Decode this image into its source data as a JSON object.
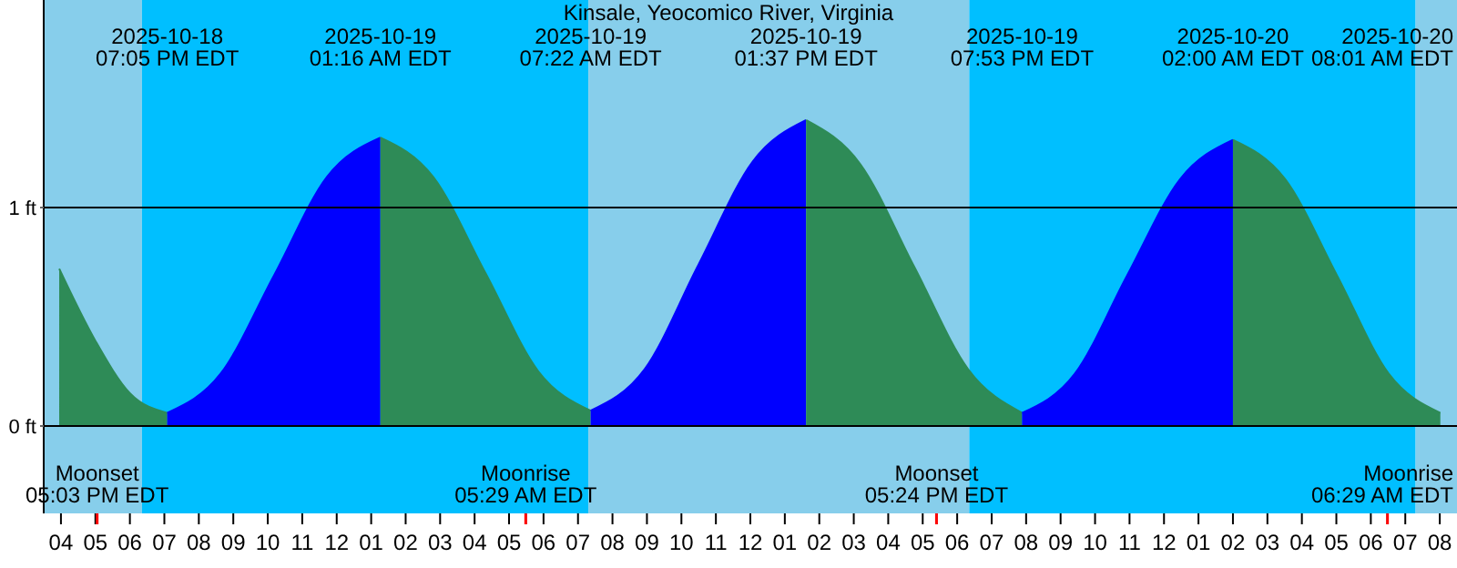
{
  "chart_data": {
    "type": "area",
    "title": "Kinsale, Yeocomico River, Virginia",
    "series": [
      {
        "color": "#2e8b57",
        "x": [
          "2025-10-18T15:57",
          "2025-10-18T17:00",
          "2025-10-18T18:00",
          "2025-10-18T19:05"
        ],
        "values": [
          0.72,
          0.39,
          0.15,
          0.06
        ]
      },
      {
        "color": "#0000ff",
        "x": [
          "2025-10-18T19:05",
          "2025-10-18T20:38",
          "2025-10-18T22:11",
          "2025-10-18T23:43",
          "2025-10-19T01:16"
        ],
        "values": [
          0.06,
          0.24,
          0.69,
          1.14,
          1.32
        ]
      },
      {
        "color": "#2e8b57",
        "x": [
          "2025-10-19T01:16",
          "2025-10-19T02:48",
          "2025-10-19T04:19",
          "2025-10-19T05:51",
          "2025-10-19T07:22"
        ],
        "values": [
          1.32,
          1.14,
          0.7,
          0.25,
          0.07
        ]
      },
      {
        "color": "#0000ff",
        "x": [
          "2025-10-19T07:22",
          "2025-10-19T08:56",
          "2025-10-19T10:30",
          "2025-10-19T12:04",
          "2025-10-19T13:37"
        ],
        "values": [
          0.07,
          0.26,
          0.74,
          1.21,
          1.4
        ]
      },
      {
        "color": "#2e8b57",
        "x": [
          "2025-10-19T13:37",
          "2025-10-19T15:11",
          "2025-10-19T16:45",
          "2025-10-19T18:19",
          "2025-10-19T19:53"
        ],
        "values": [
          1.4,
          1.2,
          0.73,
          0.26,
          0.06
        ]
      },
      {
        "color": "#0000ff",
        "x": [
          "2025-10-19T19:53",
          "2025-10-19T21:25",
          "2025-10-19T22:56",
          "2025-10-20T00:28",
          "2025-10-20T02:00"
        ],
        "values": [
          0.06,
          0.24,
          0.69,
          1.13,
          1.31
        ]
      },
      {
        "color": "#2e8b57",
        "x": [
          "2025-10-20T02:00",
          "2025-10-20T03:31",
          "2025-10-20T05:01",
          "2025-10-20T06:31",
          "2025-10-20T08:01"
        ],
        "values": [
          1.31,
          1.13,
          0.69,
          0.24,
          0.06
        ]
      }
    ],
    "xlim": [
      "2025-10-18T15:30",
      "2025-10-20T08:30"
    ],
    "xticks": [
      {
        "value": "2025-10-18T16:00",
        "label": "04"
      },
      {
        "value": "2025-10-18T17:00",
        "label": "05"
      },
      {
        "value": "2025-10-18T17:03",
        "label": null
      },
      {
        "value": "2025-10-18T18:00",
        "label": "06"
      },
      {
        "value": "2025-10-18T19:00",
        "label": "07"
      },
      {
        "value": "2025-10-18T20:00",
        "label": "08"
      },
      {
        "value": "2025-10-18T21:00",
        "label": "09"
      },
      {
        "value": "2025-10-18T22:00",
        "label": "10"
      },
      {
        "value": "2025-10-18T23:00",
        "label": "11"
      },
      {
        "value": "2025-10-19T00:00",
        "label": "12"
      },
      {
        "value": "2025-10-19T01:00",
        "label": "01"
      },
      {
        "value": "2025-10-19T02:00",
        "label": "02"
      },
      {
        "value": "2025-10-19T03:00",
        "label": "03"
      },
      {
        "value": "2025-10-19T04:00",
        "label": "04"
      },
      {
        "value": "2025-10-19T05:00",
        "label": "05"
      },
      {
        "value": "2025-10-19T05:29",
        "label": null
      },
      {
        "value": "2025-10-19T06:00",
        "label": "06"
      },
      {
        "value": "2025-10-19T07:00",
        "label": "07"
      },
      {
        "value": "2025-10-19T08:00",
        "label": "08"
      },
      {
        "value": "2025-10-19T09:00",
        "label": "09"
      },
      {
        "value": "2025-10-19T10:00",
        "label": "10"
      },
      {
        "value": "2025-10-19T11:00",
        "label": "11"
      },
      {
        "value": "2025-10-19T12:00",
        "label": "12"
      },
      {
        "value": "2025-10-19T13:00",
        "label": "01"
      },
      {
        "value": "2025-10-19T14:00",
        "label": "02"
      },
      {
        "value": "2025-10-19T15:00",
        "label": "03"
      },
      {
        "value": "2025-10-19T16:00",
        "label": "04"
      },
      {
        "value": "2025-10-19T17:00",
        "label": "05"
      },
      {
        "value": "2025-10-19T17:24",
        "label": null
      },
      {
        "value": "2025-10-19T18:00",
        "label": "06"
      },
      {
        "value": "2025-10-19T19:00",
        "label": "07"
      },
      {
        "value": "2025-10-19T20:00",
        "label": "08"
      },
      {
        "value": "2025-10-19T21:00",
        "label": "09"
      },
      {
        "value": "2025-10-19T22:00",
        "label": "10"
      },
      {
        "value": "2025-10-19T23:00",
        "label": "11"
      },
      {
        "value": "2025-10-20T00:00",
        "label": "12"
      },
      {
        "value": "2025-10-20T01:00",
        "label": "01"
      },
      {
        "value": "2025-10-20T02:00",
        "label": "02"
      },
      {
        "value": "2025-10-20T03:00",
        "label": "03"
      },
      {
        "value": "2025-10-20T04:00",
        "label": "04"
      },
      {
        "value": "2025-10-20T05:00",
        "label": "05"
      },
      {
        "value": "2025-10-20T06:00",
        "label": "06"
      },
      {
        "value": "2025-10-20T06:29",
        "label": null
      },
      {
        "value": "2025-10-20T07:00",
        "label": "07"
      },
      {
        "value": "2025-10-20T08:00",
        "label": "08"
      }
    ],
    "ylim": [
      -0.4,
      1.95
    ],
    "yticks": [
      {
        "value": 0,
        "label": "0 ft"
      },
      {
        "value": 1,
        "label": "1 ft"
      }
    ],
    "grid": "y",
    "bands": [
      {
        "axis": "x",
        "from": "2025-10-18T15:30",
        "to": "2025-10-18T18:21",
        "color": "#87ceeb"
      },
      {
        "axis": "x",
        "from": "2025-10-18T18:21",
        "to": "2025-10-19T07:18",
        "color": "#00bfff"
      },
      {
        "axis": "x",
        "from": "2025-10-19T07:18",
        "to": "2025-10-19T18:21",
        "color": "#87ceeb"
      },
      {
        "axis": "x",
        "from": "2025-10-19T18:21",
        "to": "2025-10-20T07:18",
        "color": "#00bfff"
      },
      {
        "axis": "x",
        "from": "2025-10-20T07:18",
        "to": "2025-10-20T08:30",
        "color": "#87ceeb"
      }
    ],
    "annotations": [
      "2025-10-18\n07:05 PM EDT",
      "2025-10-19\n01:16 AM EDT",
      "2025-10-19\n07:22 AM EDT",
      "2025-10-19\n01:37 PM EDT",
      "2025-10-19\n07:53 PM EDT",
      "2025-10-20\n02:00 AM EDT",
      "2025-10-20\n08:01 AM EDT",
      "Moonset\n05:03 PM EDT",
      "Moonrise\n05:29 AM EDT",
      "Moonset\n05:24 PM EDT",
      "Moonrise\n06:29 AM EDT"
    ]
  }
}
